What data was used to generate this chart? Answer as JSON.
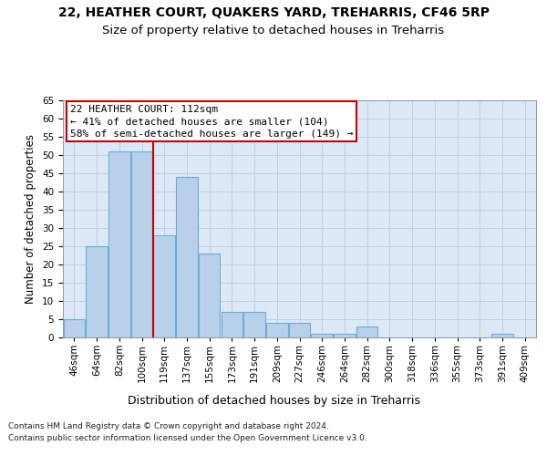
{
  "title1": "22, HEATHER COURT, QUAKERS YARD, TREHARRIS, CF46 5RP",
  "title2": "Size of property relative to detached houses in Treharris",
  "xlabel": "Distribution of detached houses by size in Treharris",
  "ylabel": "Number of detached properties",
  "bin_labels": [
    "46sqm",
    "64sqm",
    "82sqm",
    "100sqm",
    "119sqm",
    "137sqm",
    "155sqm",
    "173sqm",
    "191sqm",
    "209sqm",
    "227sqm",
    "246sqm",
    "264sqm",
    "282sqm",
    "300sqm",
    "318sqm",
    "336sqm",
    "355sqm",
    "373sqm",
    "391sqm",
    "409sqm"
  ],
  "bar_values": [
    5,
    25,
    51,
    51,
    28,
    44,
    23,
    7,
    7,
    4,
    4,
    1,
    1,
    3,
    0,
    0,
    0,
    0,
    0,
    1,
    0
  ],
  "bar_color": "#b8d0ea",
  "bar_edge_color": "#6aaed6",
  "property_bar_index": 3,
  "property_line_color": "#cc0000",
  "annotation_text": "22 HEATHER COURT: 112sqm\n← 41% of detached houses are smaller (104)\n58% of semi-detached houses are larger (149) →",
  "annotation_box_color": "#cc0000",
  "ylim_max": 65,
  "ytick_step": 5,
  "grid_color": "#c0cfe0",
  "background_color": "#dce8f5",
  "footer_line1": "Contains HM Land Registry data © Crown copyright and database right 2024.",
  "footer_line2": "Contains public sector information licensed under the Open Government Licence v3.0.",
  "title1_fontsize": 10,
  "title2_fontsize": 9.5,
  "xlabel_fontsize": 9,
  "ylabel_fontsize": 8.5,
  "tick_fontsize": 7.5,
  "annotation_fontsize": 8,
  "footer_fontsize": 6.5
}
